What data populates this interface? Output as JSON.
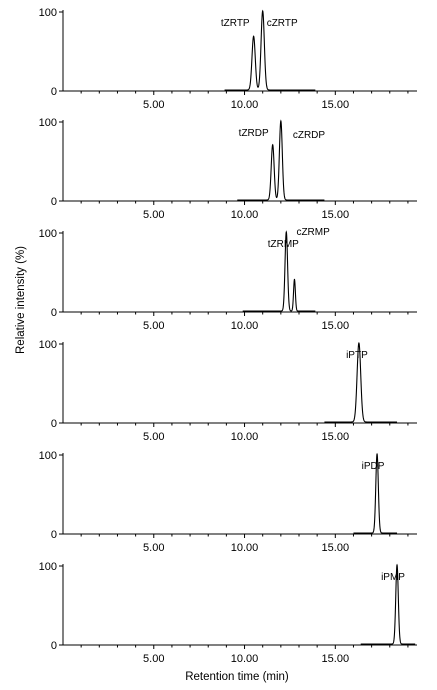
{
  "chart_data": {
    "type": "line",
    "xlabel": "Retention time  (min)",
    "ylabel": "Relative intensity (%)",
    "xlim": [
      0,
      19.5
    ],
    "ylim": [
      0,
      100
    ],
    "x_ticks": [
      5,
      10,
      15
    ],
    "x_tick_labels": [
      "5.00",
      "10.00",
      "15.00"
    ],
    "y_ticks": [
      0,
      100
    ],
    "y_tick_labels": [
      "0",
      "100"
    ],
    "panels": [
      {
        "range": [
          8.9,
          13.9
        ],
        "peaks": [
          {
            "label": "tZRTP",
            "rt": 10.5,
            "height": 68,
            "width": 0.09
          },
          {
            "label": "cZRTP",
            "rt": 11.0,
            "height": 100,
            "width": 0.09
          }
        ]
      },
      {
        "range": [
          9.6,
          14.4
        ],
        "peaks": [
          {
            "label": "tZRDP",
            "rt": 11.55,
            "height": 70,
            "width": 0.08
          },
          {
            "label": "cZRDP",
            "rt": 12.0,
            "height": 100,
            "width": 0.08
          }
        ]
      },
      {
        "range": [
          9.9,
          13.9
        ],
        "peaks": [
          {
            "label": "tZRMP",
            "rt": 12.3,
            "height": 100,
            "width": 0.07
          },
          {
            "label": "cZRMP",
            "rt": 12.75,
            "height": 40,
            "width": 0.05
          }
        ]
      },
      {
        "range": [
          14.4,
          18.4
        ],
        "peaks": [
          {
            "label": "iPTP",
            "rt": 16.3,
            "height": 100,
            "width": 0.1
          }
        ]
      },
      {
        "range": [
          16.0,
          18.4
        ],
        "peaks": [
          {
            "label": "iPDP",
            "rt": 17.3,
            "height": 100,
            "width": 0.07
          }
        ]
      },
      {
        "range": [
          16.4,
          19.4
        ],
        "peaks": [
          {
            "label": "iPMP",
            "rt": 18.4,
            "height": 100,
            "width": 0.07
          }
        ]
      }
    ]
  }
}
